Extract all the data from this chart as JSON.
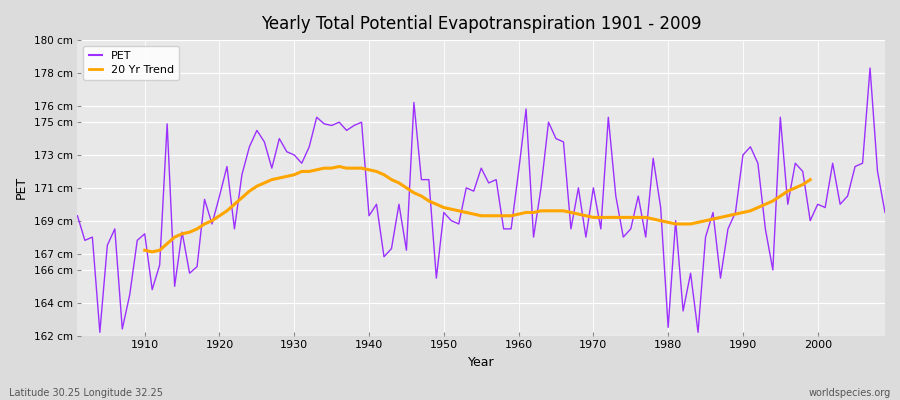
{
  "title": "Yearly Total Potential Evapotranspiration 1901 - 2009",
  "xlabel": "Year",
  "ylabel": "PET",
  "subtitle_left": "Latitude 30.25 Longitude 32.25",
  "subtitle_right": "worldspecies.org",
  "pet_color": "#9B30FF",
  "trend_color": "#FFA500",
  "background_color": "#DCDCDC",
  "plot_bg_color": "#E8E8E8",
  "grid_color": "#FFFFFF",
  "ylim": [
    162,
    180
  ],
  "ytick_positions": [
    162,
    164,
    166,
    167,
    169,
    171,
    173,
    175,
    176,
    178,
    180
  ],
  "ytick_labels": [
    "162 cm",
    "164 cm",
    "166 cm",
    "167 cm",
    "169 cm",
    "171 cm",
    "173 cm",
    "175 cm",
    "176 cm",
    "178 cm",
    "180 cm"
  ],
  "xticks": [
    1910,
    1920,
    1930,
    1940,
    1950,
    1960,
    1970,
    1980,
    1990,
    2000
  ],
  "years": [
    1901,
    1902,
    1903,
    1904,
    1905,
    1906,
    1907,
    1908,
    1909,
    1910,
    1911,
    1912,
    1913,
    1914,
    1915,
    1916,
    1917,
    1918,
    1919,
    1920,
    1921,
    1922,
    1923,
    1924,
    1925,
    1926,
    1927,
    1928,
    1929,
    1930,
    1931,
    1932,
    1933,
    1934,
    1935,
    1936,
    1937,
    1938,
    1939,
    1940,
    1941,
    1942,
    1943,
    1944,
    1945,
    1946,
    1947,
    1948,
    1949,
    1950,
    1951,
    1952,
    1953,
    1954,
    1955,
    1956,
    1957,
    1958,
    1959,
    1960,
    1961,
    1962,
    1963,
    1964,
    1965,
    1966,
    1967,
    1968,
    1969,
    1970,
    1971,
    1972,
    1973,
    1974,
    1975,
    1976,
    1977,
    1978,
    1979,
    1980,
    1981,
    1982,
    1983,
    1984,
    1985,
    1986,
    1987,
    1988,
    1989,
    1990,
    1991,
    1992,
    1993,
    1994,
    1995,
    1996,
    1997,
    1998,
    1999,
    2000,
    2001,
    2002,
    2003,
    2004,
    2005,
    2006,
    2007,
    2008,
    2009
  ],
  "pet_values": [
    169.3,
    167.8,
    168.0,
    162.2,
    167.5,
    168.5,
    162.4,
    164.5,
    167.8,
    168.2,
    164.8,
    166.3,
    174.9,
    165.0,
    168.3,
    165.8,
    166.2,
    170.3,
    168.8,
    170.5,
    172.3,
    168.5,
    171.8,
    173.5,
    174.5,
    173.8,
    172.2,
    174.0,
    173.2,
    173.0,
    172.5,
    173.5,
    175.3,
    174.9,
    174.8,
    175.0,
    174.5,
    174.8,
    175.0,
    169.3,
    170.0,
    166.8,
    167.3,
    170.0,
    167.2,
    176.2,
    171.5,
    171.5,
    165.5,
    169.5,
    169.0,
    168.8,
    171.0,
    170.8,
    172.2,
    171.3,
    171.5,
    168.5,
    168.5,
    172.0,
    175.8,
    168.0,
    171.0,
    175.0,
    174.0,
    173.8,
    168.5,
    171.0,
    168.0,
    171.0,
    168.5,
    175.3,
    170.5,
    168.0,
    168.5,
    170.5,
    168.0,
    172.8,
    169.8,
    162.5,
    169.0,
    163.5,
    165.8,
    162.2,
    168.0,
    169.5,
    165.5,
    168.5,
    169.5,
    173.0,
    173.5,
    172.5,
    168.5,
    166.0,
    175.3,
    170.0,
    172.5,
    172.0,
    169.0,
    170.0,
    169.8,
    172.5,
    170.0,
    170.5,
    172.3,
    172.5,
    178.3,
    172.0,
    169.5
  ],
  "trend_years": [
    1910,
    1911,
    1912,
    1913,
    1914,
    1915,
    1916,
    1917,
    1918,
    1919,
    1920,
    1921,
    1922,
    1923,
    1924,
    1925,
    1926,
    1927,
    1928,
    1929,
    1930,
    1931,
    1932,
    1933,
    1934,
    1935,
    1936,
    1937,
    1938,
    1939,
    1940,
    1941,
    1942,
    1943,
    1944,
    1945,
    1946,
    1947,
    1948,
    1949,
    1950,
    1951,
    1952,
    1953,
    1954,
    1955,
    1956,
    1957,
    1958,
    1959,
    1960,
    1961,
    1962,
    1963,
    1964,
    1965,
    1966,
    1967,
    1968,
    1969,
    1970,
    1971,
    1972,
    1973,
    1974,
    1975,
    1976,
    1977,
    1978,
    1979,
    1980,
    1981,
    1982,
    1983,
    1984,
    1985,
    1986,
    1987,
    1988,
    1989,
    1990,
    1991,
    1992,
    1993,
    1994,
    1995,
    1996,
    1997,
    1998,
    1999
  ],
  "trend_values": [
    167.2,
    167.1,
    167.2,
    167.6,
    168.0,
    168.2,
    168.3,
    168.5,
    168.8,
    169.0,
    169.3,
    169.6,
    170.0,
    170.4,
    170.8,
    171.1,
    171.3,
    171.5,
    171.6,
    171.7,
    171.8,
    172.0,
    172.0,
    172.1,
    172.2,
    172.2,
    172.3,
    172.2,
    172.2,
    172.2,
    172.1,
    172.0,
    171.8,
    171.5,
    171.3,
    171.0,
    170.7,
    170.5,
    170.2,
    170.0,
    169.8,
    169.7,
    169.6,
    169.5,
    169.4,
    169.3,
    169.3,
    169.3,
    169.3,
    169.3,
    169.4,
    169.5,
    169.5,
    169.6,
    169.6,
    169.6,
    169.6,
    169.5,
    169.4,
    169.3,
    169.2,
    169.2,
    169.2,
    169.2,
    169.2,
    169.2,
    169.2,
    169.2,
    169.1,
    169.0,
    168.9,
    168.8,
    168.8,
    168.8,
    168.9,
    169.0,
    169.1,
    169.2,
    169.3,
    169.4,
    169.5,
    169.6,
    169.8,
    170.0,
    170.2,
    170.5,
    170.8,
    171.0,
    171.2,
    171.5
  ]
}
